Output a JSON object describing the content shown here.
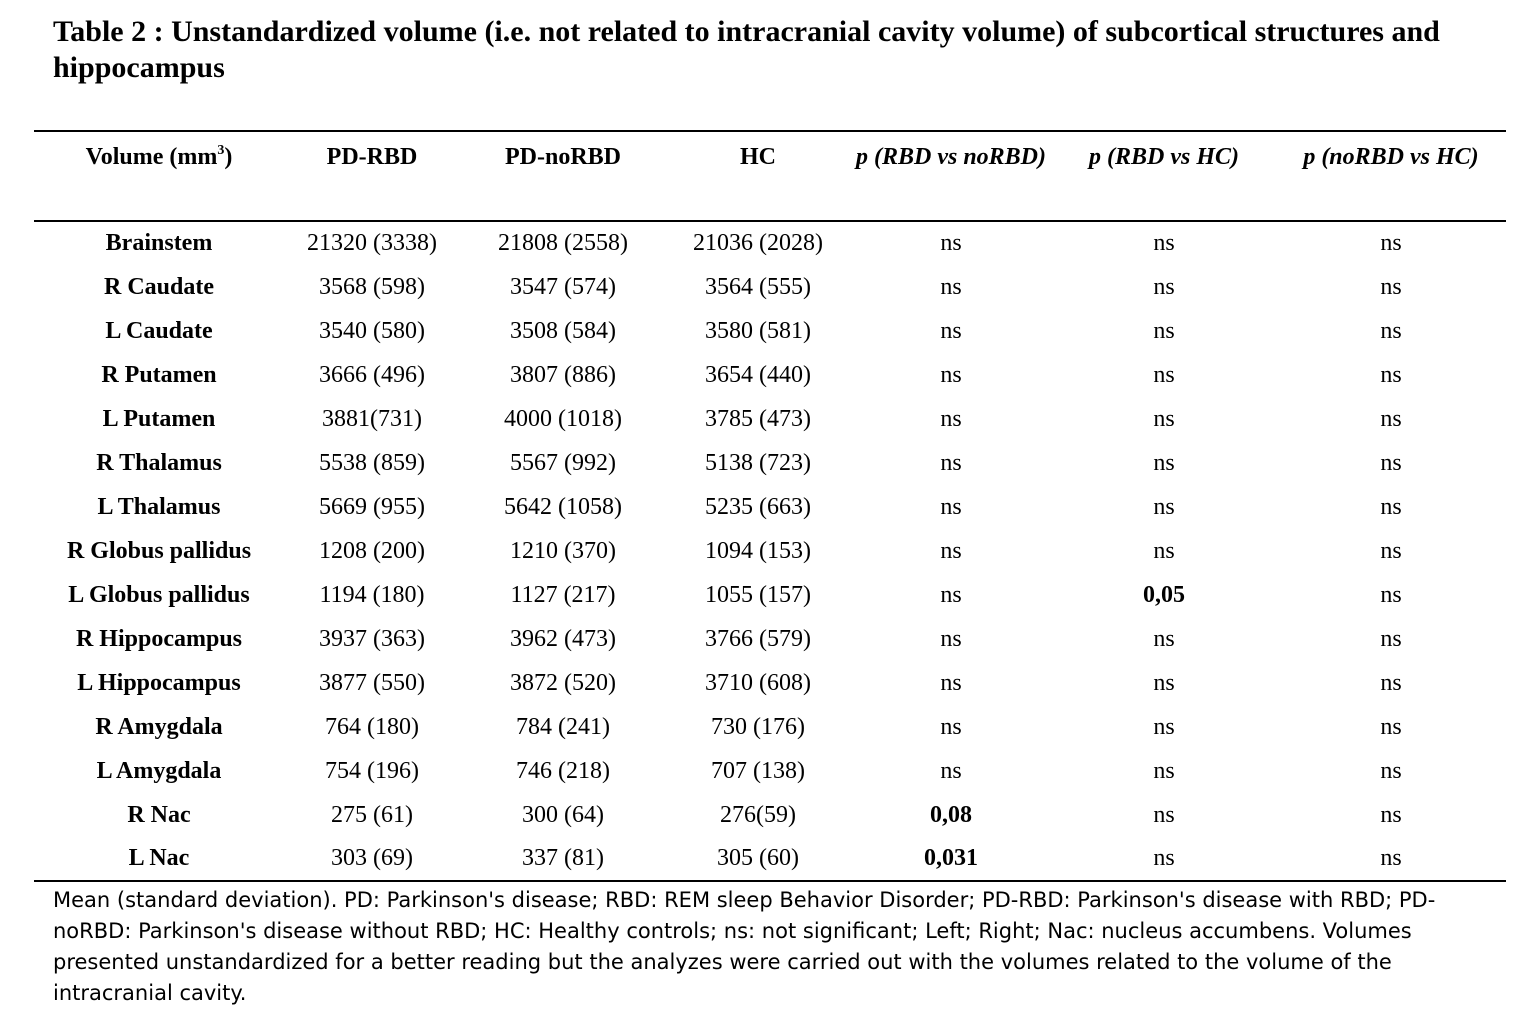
{
  "title": "Table 2 : Unstandardized volume (i.e. not related to intracranial cavity volume) of subcortical structures and hippocampus",
  "headers": {
    "volume": "Volume (mm",
    "volume_sup": "3",
    "volume_close": ")",
    "pd_rbd": "PD-RBD",
    "pd_norbd": "PD-noRBD",
    "hc": "HC",
    "p_rbd_norbd": "p (RBD vs noRBD)",
    "p_rbd_hc": "p (RBD vs HC)",
    "p_norbd_hc": "p (noRBD vs HC)"
  },
  "rows": [
    {
      "label": "Brainstem",
      "pd_rbd": "21320 (3338)",
      "pd_norbd": "21808 (2558)",
      "hc": "21036 (2028)",
      "p1": "ns",
      "p2": "ns",
      "p3": "ns"
    },
    {
      "label": "R Caudate",
      "pd_rbd": "3568 (598)",
      "pd_norbd": "3547 (574)",
      "hc": "3564 (555)",
      "p1": "ns",
      "p2": "ns",
      "p3": "ns"
    },
    {
      "label": "L Caudate",
      "pd_rbd": "3540 (580)",
      "pd_norbd": "3508 (584)",
      "hc": "3580 (581)",
      "p1": "ns",
      "p2": "ns",
      "p3": "ns"
    },
    {
      "label": "R Putamen",
      "pd_rbd": "3666 (496)",
      "pd_norbd": "3807 (886)",
      "hc": "3654 (440)",
      "p1": "ns",
      "p2": "ns",
      "p3": "ns"
    },
    {
      "label": "L Putamen",
      "pd_rbd": "3881(731)",
      "pd_norbd": "4000 (1018)",
      "hc": "3785 (473)",
      "p1": "ns",
      "p2": "ns",
      "p3": "ns"
    },
    {
      "label": "R Thalamus",
      "pd_rbd": "5538 (859)",
      "pd_norbd": "5567 (992)",
      "hc": "5138 (723)",
      "p1": "ns",
      "p2": "ns",
      "p3": "ns"
    },
    {
      "label": "L Thalamus",
      "pd_rbd": "5669 (955)",
      "pd_norbd": "5642 (1058)",
      "hc": "5235 (663)",
      "p1": "ns",
      "p2": "ns",
      "p3": "ns"
    },
    {
      "label": "R Globus pallidus",
      "pd_rbd": "1208 (200)",
      "pd_norbd": "1210 (370)",
      "hc": "1094 (153)",
      "p1": "ns",
      "p2": "ns",
      "p3": "ns"
    },
    {
      "label": "L Globus pallidus",
      "pd_rbd": "1194 (180)",
      "pd_norbd": "1127 (217)",
      "hc": "1055 (157)",
      "p1": "ns",
      "p2": "0,05",
      "p3": "ns"
    },
    {
      "label": "R Hippocampus",
      "pd_rbd": "3937 (363)",
      "pd_norbd": "3962 (473)",
      "hc": "3766 (579)",
      "p1": "ns",
      "p2": "ns",
      "p3": "ns"
    },
    {
      "label": "L Hippocampus",
      "pd_rbd": "3877 (550)",
      "pd_norbd": "3872 (520)",
      "hc": "3710 (608)",
      "p1": "ns",
      "p2": "ns",
      "p3": "ns"
    },
    {
      "label": "R Amygdala",
      "pd_rbd": "764 (180)",
      "pd_norbd": "784 (241)",
      "hc": "730 (176)",
      "p1": "ns",
      "p2": "ns",
      "p3": "ns"
    },
    {
      "label": "L Amygdala",
      "pd_rbd": "754 (196)",
      "pd_norbd": "746 (218)",
      "hc": "707 (138)",
      "p1": "ns",
      "p2": "ns",
      "p3": "ns"
    },
    {
      "label": "R Nac",
      "pd_rbd": "275 (61)",
      "pd_norbd": "300 (64)",
      "hc": "276(59)",
      "p1": "0,08",
      "p2": "ns",
      "p3": "ns"
    },
    {
      "label": "L Nac",
      "pd_rbd": "303 (69)",
      "pd_norbd": "337 (81)",
      "hc": "305 (60)",
      "p1": "0,031",
      "p2": "ns",
      "p3": "ns"
    }
  ],
  "footnote": "Mean (standard deviation). PD: Parkinson's disease; RBD: REM sleep Behavior Disorder; PD-RBD: Parkinson's disease with RBD; PD-noRBD: Parkinson's disease without RBD; HC: Healthy controls; ns: not significant; Left; Right; Nac: nucleus accumbens. Volumes presented unstandardized for a better reading but the analyzes were carried out with the volumes related to the volume of the intracranial cavity."
}
